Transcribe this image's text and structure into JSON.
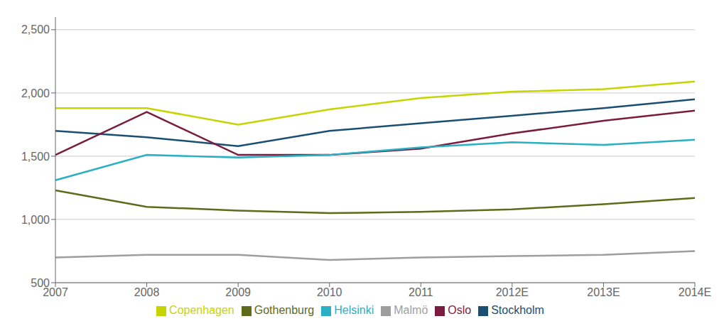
{
  "chart_data": {
    "type": "line",
    "categories": [
      "2007",
      "2008",
      "2009",
      "2010",
      "2011",
      "2012E",
      "2013E",
      "2014E"
    ],
    "series": [
      {
        "name": "Stockholm",
        "color": "#1b4f72",
        "values": [
          1700,
          1650,
          1580,
          1700,
          1760,
          1820,
          1880,
          1950
        ]
      },
      {
        "name": "Gothenburg",
        "color": "#5d6b1a",
        "values": [
          1230,
          1100,
          1070,
          1050,
          1060,
          1080,
          1120,
          1170
        ]
      },
      {
        "name": "Malmö",
        "color": "#9e9e9e",
        "values": [
          700,
          720,
          720,
          680,
          700,
          710,
          720,
          750
        ]
      },
      {
        "name": "Oslo",
        "color": "#7b1c3f",
        "values": [
          1510,
          1850,
          1510,
          1510,
          1560,
          1680,
          1780,
          1860
        ]
      },
      {
        "name": "Helsinki",
        "color": "#2ab0c5",
        "values": [
          1310,
          1510,
          1490,
          1510,
          1570,
          1610,
          1590,
          1630
        ]
      },
      {
        "name": "Copenhagen",
        "color": "#c8d400",
        "values": [
          1880,
          1880,
          1750,
          1870,
          1960,
          2010,
          2030,
          2090
        ]
      }
    ],
    "ylim": [
      500,
      2600
    ],
    "yticks": [
      500,
      {
        "value": 1000,
        "label": "1,000"
      },
      {
        "value": 1500,
        "label": "1,500"
      },
      {
        "value": 2000,
        "label": "2,000"
      },
      {
        "value": 2500,
        "label": "2,500"
      }
    ],
    "grid": true,
    "legend": "bottom"
  }
}
